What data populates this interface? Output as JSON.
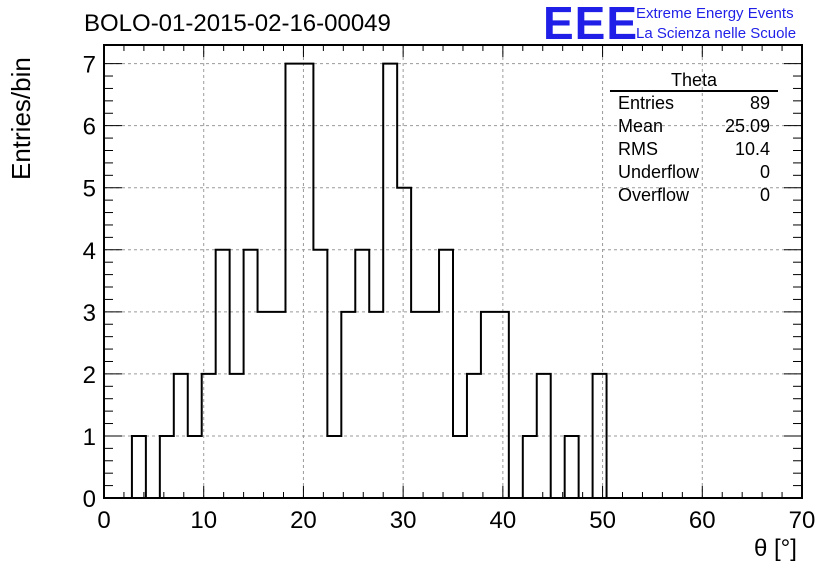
{
  "title": "BOLO-01-2015-02-16-00049",
  "logo": {
    "mark": "EEE",
    "line1": "Extreme Energy Events",
    "line2": "La Scienza nelle Scuole",
    "color": "#1f1fe8"
  },
  "stats": {
    "name": "Theta",
    "rows": [
      {
        "label": "Entries",
        "value": "89"
      },
      {
        "label": "Mean",
        "value": "25.09"
      },
      {
        "label": "RMS",
        "value": "10.4"
      },
      {
        "label": "Underflow",
        "value": "0"
      },
      {
        "label": "Overflow",
        "value": "0"
      }
    ]
  },
  "chart_data": {
    "type": "bar",
    "histogram": true,
    "title": "BOLO-01-2015-02-16-00049",
    "xlabel": "θ [°]",
    "ylabel": "Entries/bin",
    "xlim": [
      0,
      70
    ],
    "ylim": [
      0,
      7.3
    ],
    "grid": true,
    "bin_width": 1.4,
    "x_ticks": [
      0,
      10,
      20,
      30,
      40,
      50,
      60,
      70
    ],
    "y_ticks": [
      0,
      1,
      2,
      3,
      4,
      5,
      6,
      7
    ],
    "values": [
      0,
      0,
      1,
      0,
      1,
      2,
      1,
      2,
      4,
      2,
      4,
      3,
      3,
      7,
      7,
      4,
      1,
      3,
      4,
      3,
      7,
      5,
      3,
      3,
      4,
      1,
      2,
      3,
      3,
      0,
      1,
      2,
      0,
      1,
      0,
      2,
      0,
      0,
      0,
      0,
      0,
      0,
      0,
      0,
      0,
      0,
      0,
      0,
      0,
      0
    ]
  }
}
